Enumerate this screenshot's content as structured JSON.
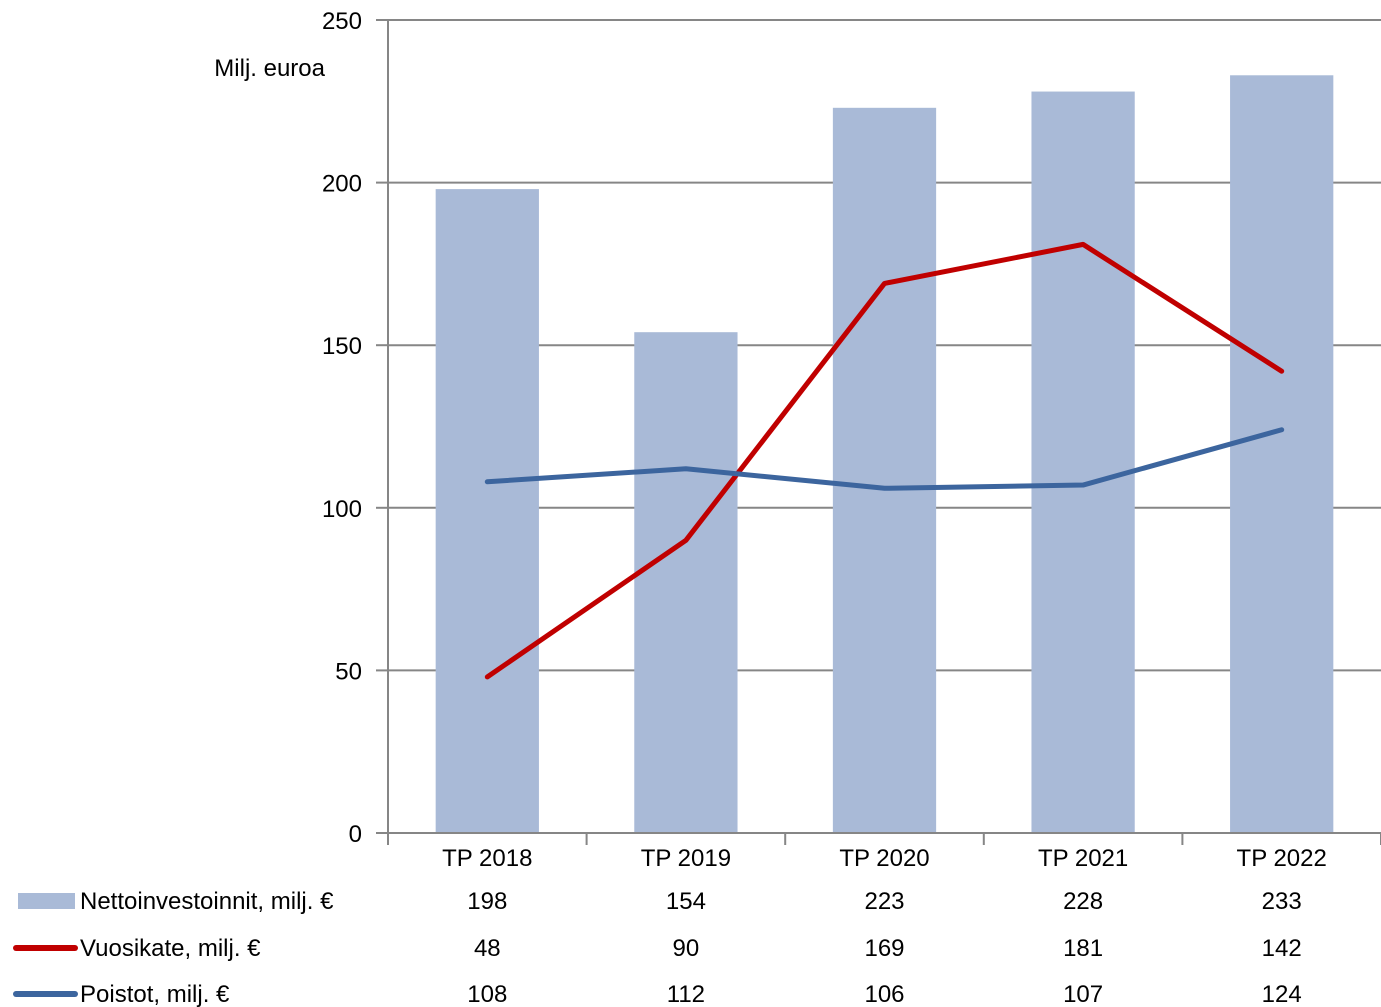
{
  "chart_data": {
    "type": "bar",
    "ylabel": "Milj. euroa",
    "ylim": [
      0,
      250
    ],
    "yticks": [
      0,
      50,
      100,
      150,
      200,
      250
    ],
    "grid": true,
    "legend": "bottom-table",
    "categories": [
      "TP 2018",
      "TP 2019",
      "TP 2020",
      "TP 2021",
      "TP 2022"
    ],
    "series": [
      {
        "name": "Nettoinvestoinnit, milj. €",
        "kind": "bar",
        "color": "#a9bad7",
        "values": [
          198,
          154,
          223,
          228,
          233
        ]
      },
      {
        "name": "Vuosikate, milj. €",
        "kind": "line",
        "color": "#c00000",
        "values": [
          48,
          90,
          169,
          181,
          142
        ]
      },
      {
        "name": "Poistot, milj. €",
        "kind": "line",
        "color": "#3c659e",
        "values": [
          108,
          112,
          106,
          107,
          124
        ]
      }
    ]
  }
}
